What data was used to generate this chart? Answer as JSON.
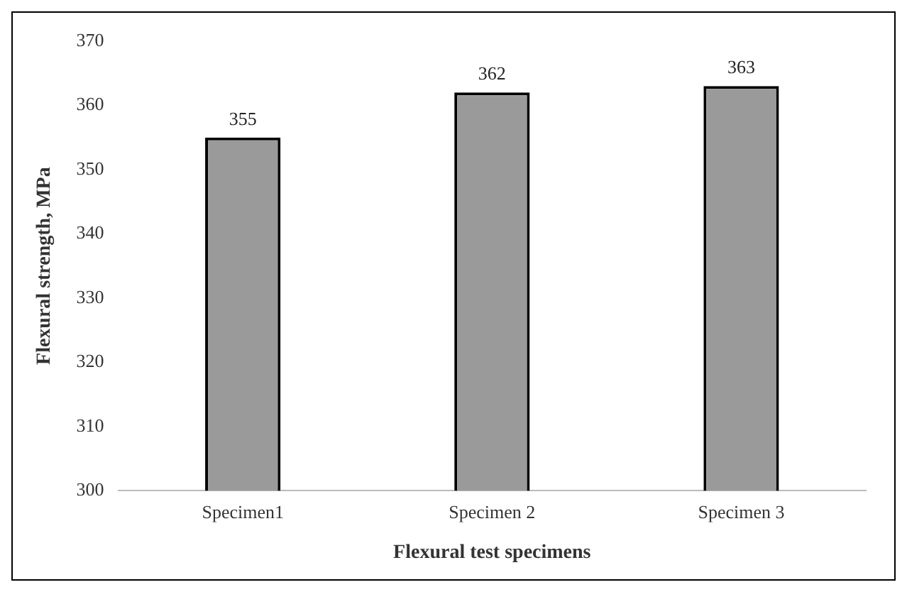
{
  "chart_data": {
    "type": "bar",
    "xlabel": "Flexural test specimens",
    "ylabel": "Flexural strength, MPa",
    "categories": [
      "Specimen1",
      "Specimen 2",
      "Specimen 3"
    ],
    "values": [
      355,
      362,
      363
    ],
    "color": "#9a9a9a",
    "ylim": [
      300,
      370
    ],
    "yticks": [
      300,
      310,
      320,
      330,
      340,
      350,
      360,
      370
    ],
    "data_labels": true
  }
}
